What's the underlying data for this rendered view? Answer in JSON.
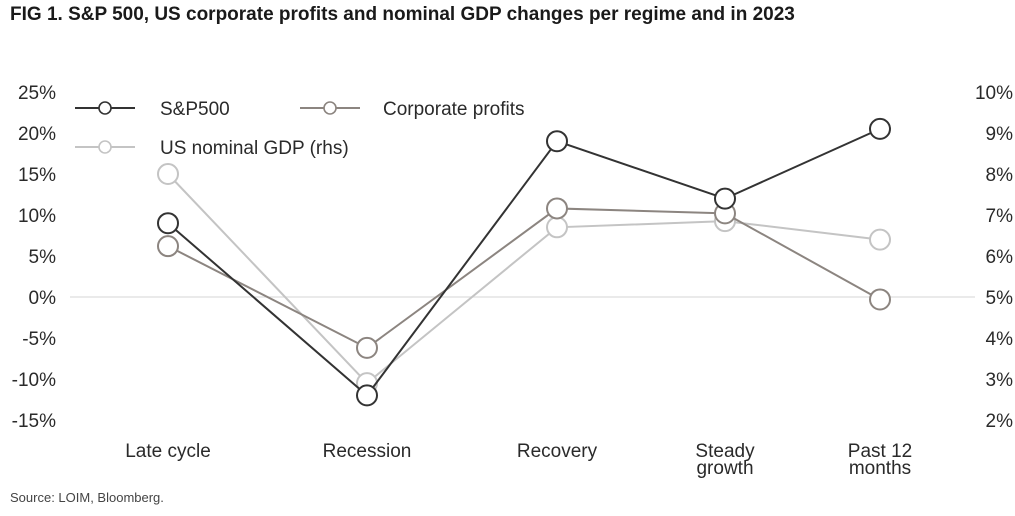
{
  "title": "FIG 1. S&P 500, US corporate profits and nominal GDP changes per regime and in 2023",
  "source": "Source: LOIM, Bloomberg.",
  "chart_data": {
    "type": "line",
    "categories": [
      [
        "Late cycle"
      ],
      [
        "Recession"
      ],
      [
        "Recovery"
      ],
      [
        "Steady",
        "growth"
      ],
      [
        "Past 12",
        "months"
      ]
    ],
    "left_axis": {
      "ylim": [
        -15,
        25
      ],
      "ticks": [
        25,
        20,
        15,
        10,
        5,
        0,
        -5,
        -10,
        -15
      ],
      "tick_labels": [
        "25%",
        "20%",
        "15%",
        "10%",
        "5%",
        "0%",
        "-5%",
        "-10%",
        "-15%"
      ]
    },
    "right_axis": {
      "ylim": [
        2,
        10
      ],
      "ticks": [
        10,
        9,
        8,
        7,
        6,
        5,
        4,
        3,
        2
      ],
      "tick_labels": [
        "10%",
        "9%",
        "8%",
        "7%",
        "6%",
        "5%",
        "4%",
        "3%",
        "2%"
      ]
    },
    "series": [
      {
        "name": "S&P500",
        "axis": "left",
        "color": "#333333",
        "values": [
          9,
          -12,
          19,
          12,
          20.5
        ]
      },
      {
        "name": "Corporate profits",
        "axis": "left",
        "color": "#8c8580",
        "values": [
          6.2,
          -6.2,
          10.8,
          10.2,
          -0.3
        ]
      },
      {
        "name": "US nominal GDP (rhs)",
        "axis": "right",
        "color": "#c4c4c4",
        "values": [
          8.0,
          2.9,
          6.7,
          6.85,
          6.4
        ]
      }
    ],
    "zero_line": true
  }
}
